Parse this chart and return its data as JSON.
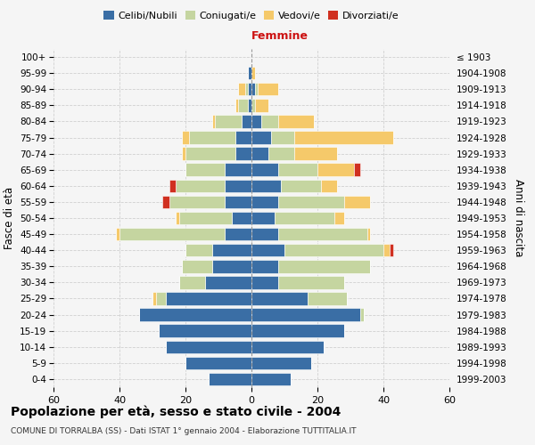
{
  "age_groups": [
    "0-4",
    "5-9",
    "10-14",
    "15-19",
    "20-24",
    "25-29",
    "30-34",
    "35-39",
    "40-44",
    "45-49",
    "50-54",
    "55-59",
    "60-64",
    "65-69",
    "70-74",
    "75-79",
    "80-84",
    "85-89",
    "90-94",
    "95-99",
    "100+"
  ],
  "birth_years": [
    "1999-2003",
    "1994-1998",
    "1989-1993",
    "1984-1988",
    "1979-1983",
    "1974-1978",
    "1969-1973",
    "1964-1968",
    "1959-1963",
    "1954-1958",
    "1949-1953",
    "1944-1948",
    "1939-1943",
    "1934-1938",
    "1929-1933",
    "1924-1928",
    "1919-1923",
    "1914-1918",
    "1909-1913",
    "1904-1908",
    "≤ 1903"
  ],
  "colors": {
    "single": "#3a6ea5",
    "married": "#c5d5a0",
    "widowed": "#f5c96a",
    "divorced": "#d03020"
  },
  "males": {
    "single": [
      13,
      20,
      26,
      28,
      34,
      26,
      14,
      12,
      12,
      8,
      6,
      8,
      8,
      8,
      5,
      5,
      3,
      1,
      1,
      1,
      0
    ],
    "married": [
      0,
      0,
      0,
      0,
      0,
      3,
      8,
      9,
      8,
      32,
      16,
      17,
      15,
      12,
      15,
      14,
      8,
      3,
      1,
      0,
      0
    ],
    "widowed": [
      0,
      0,
      0,
      0,
      0,
      1,
      0,
      0,
      0,
      1,
      1,
      0,
      0,
      0,
      1,
      2,
      1,
      1,
      2,
      0,
      0
    ],
    "divorced": [
      0,
      0,
      0,
      0,
      0,
      0,
      0,
      0,
      0,
      0,
      0,
      2,
      2,
      0,
      0,
      0,
      0,
      0,
      0,
      0,
      0
    ]
  },
  "females": {
    "single": [
      12,
      18,
      22,
      28,
      33,
      17,
      8,
      8,
      10,
      8,
      7,
      8,
      9,
      8,
      5,
      6,
      3,
      0,
      1,
      0,
      0
    ],
    "married": [
      0,
      0,
      0,
      0,
      1,
      12,
      20,
      28,
      30,
      27,
      18,
      20,
      12,
      12,
      8,
      7,
      5,
      1,
      1,
      0,
      0
    ],
    "widowed": [
      0,
      0,
      0,
      0,
      0,
      0,
      0,
      0,
      2,
      1,
      3,
      8,
      5,
      11,
      13,
      30,
      11,
      4,
      6,
      1,
      0
    ],
    "divorced": [
      0,
      0,
      0,
      0,
      0,
      0,
      0,
      0,
      1,
      0,
      0,
      0,
      0,
      2,
      0,
      0,
      0,
      0,
      0,
      0,
      0
    ]
  },
  "title": "Popolazione per età, sesso e stato civile - 2004",
  "subtitle": "COMUNE DI TORRALBA (SS) - Dati ISTAT 1° gennaio 2004 - Elaborazione TUTTITALIA.IT",
  "xlabel_right": "Femmine",
  "ylabel_left": "Fasce di età",
  "ylabel_right": "Anni di nascita",
  "xlim": 60,
  "xtick_step": 20,
  "legend_labels": [
    "Celibi/Nubili",
    "Coniugati/e",
    "Vedovi/e",
    "Divorziati/e"
  ],
  "bg_color": "#f5f5f5",
  "grid_color": "#cccccc"
}
